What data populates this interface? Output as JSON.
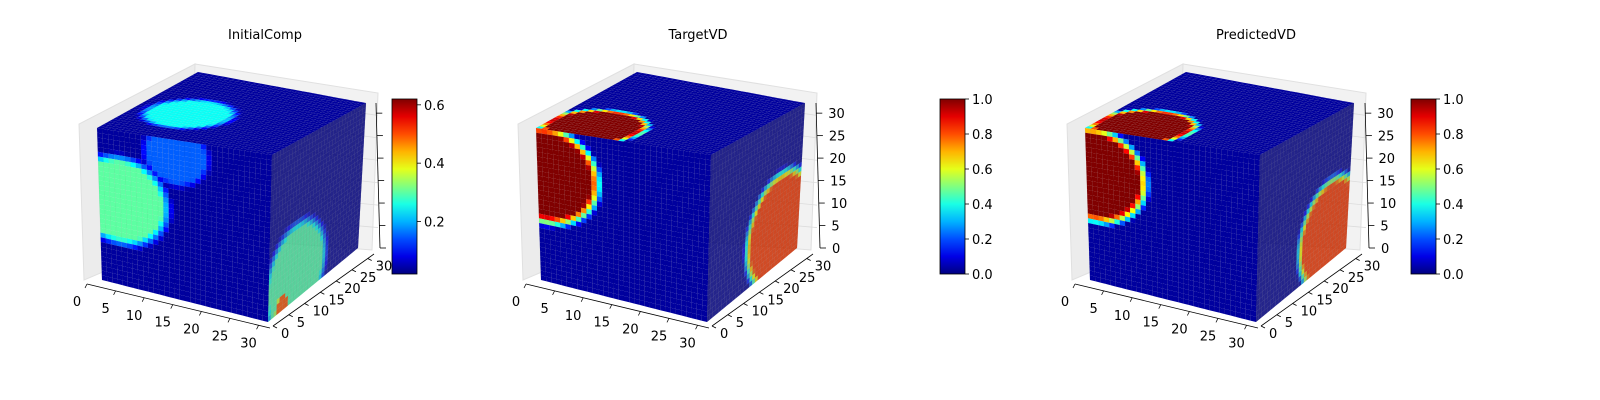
{
  "figure": {
    "background": "#ffffff",
    "panels": [
      "initial-comp",
      "target-vd",
      "predicted-vd"
    ]
  },
  "chart_data": [
    {
      "type": "heatmap",
      "title": "InitialComp",
      "projection": "3d-voxel-cube",
      "x_ticks": [
        "0",
        "5",
        "10",
        "15",
        "20",
        "25",
        "30"
      ],
      "y_ticks": [
        "0",
        "5",
        "10",
        "15",
        "20",
        "25",
        "30"
      ],
      "z_ticks": [],
      "xlim": [
        0,
        32
      ],
      "ylim": [
        0,
        32
      ],
      "zlim": [
        0,
        32
      ],
      "colormap": "jet",
      "colorbar": {
        "range": [
          0.02,
          0.62
        ],
        "ticks": [
          "0.2",
          "0.4",
          "0.6"
        ],
        "tick_values": [
          0.2,
          0.4,
          0.6
        ]
      },
      "grid": true,
      "blobs": {
        "front": [
          {
            "u": 0.12,
            "v": 0.45,
            "r": 0.3,
            "value": 0.3
          },
          {
            "u": 0.45,
            "v": 0.1,
            "r": 0.2,
            "value": 0.15
          }
        ],
        "side": [
          {
            "u": 0.3,
            "v": 0.85,
            "r": 0.35,
            "value": 0.35
          },
          {
            "u": 0.15,
            "v": 0.98,
            "r": 0.08,
            "value": 0.6
          }
        ],
        "top": [
          {
            "u": 0.3,
            "v": 0.6,
            "r": 0.25,
            "value": 0.25
          }
        ]
      }
    },
    {
      "type": "heatmap",
      "title": "TargetVD",
      "projection": "3d-voxel-cube",
      "x_ticks": [
        "0",
        "5",
        "10",
        "15",
        "20",
        "25",
        "30"
      ],
      "y_ticks": [
        "0",
        "5",
        "10",
        "15",
        "20",
        "25",
        "30"
      ],
      "z_ticks": [
        "0",
        "5",
        "10",
        "15",
        "20",
        "25",
        "30"
      ],
      "xlim": [
        0,
        32
      ],
      "ylim": [
        0,
        32
      ],
      "zlim": [
        0,
        32
      ],
      "colormap": "jet",
      "colorbar": {
        "range": [
          0,
          1
        ],
        "ticks": [
          "0.0",
          "0.2",
          "0.4",
          "0.6",
          "0.8",
          "1.0"
        ],
        "tick_values": [
          0,
          0.2,
          0.4,
          0.6,
          0.8,
          1.0
        ]
      },
      "grid": true,
      "blobs": {
        "front": [
          {
            "u": 0.04,
            "v": 0.3,
            "r": 0.33,
            "value": 1.0
          }
        ],
        "side": [
          {
            "u": 0.78,
            "v": 0.75,
            "r": 0.38,
            "value": 1.0
          }
        ],
        "top": [
          {
            "u": 0.25,
            "v": 0.85,
            "r": 0.28,
            "value": 1.0
          }
        ]
      }
    },
    {
      "type": "heatmap",
      "title": "PredictedVD",
      "projection": "3d-voxel-cube",
      "x_ticks": [
        "0",
        "5",
        "10",
        "15",
        "20",
        "25",
        "30"
      ],
      "y_ticks": [
        "0",
        "5",
        "10",
        "15",
        "20",
        "25",
        "30"
      ],
      "z_ticks": [
        "0",
        "5",
        "10",
        "15",
        "20",
        "25",
        "30"
      ],
      "xlim": [
        0,
        32
      ],
      "ylim": [
        0,
        32
      ],
      "zlim": [
        0,
        32
      ],
      "colormap": "jet",
      "colorbar": {
        "range": [
          0,
          1
        ],
        "ticks": [
          "0.0",
          "0.2",
          "0.4",
          "0.6",
          "0.8",
          "1.0"
        ],
        "tick_values": [
          0,
          0.2,
          0.4,
          0.6,
          0.8,
          1.0
        ]
      },
      "grid": true,
      "blobs": {
        "front": [
          {
            "u": 0.04,
            "v": 0.3,
            "r": 0.32,
            "value": 1.0
          }
        ],
        "side": [
          {
            "u": 0.8,
            "v": 0.78,
            "r": 0.36,
            "value": 1.0
          }
        ],
        "top": [
          {
            "u": 0.25,
            "v": 0.85,
            "r": 0.28,
            "value": 1.0
          }
        ]
      }
    }
  ]
}
